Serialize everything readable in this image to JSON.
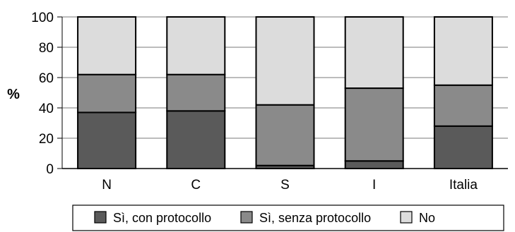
{
  "chart_data": {
    "type": "bar",
    "stacked": true,
    "percent_stacked": true,
    "categories": [
      "N",
      "C",
      "S",
      "I",
      "Italia"
    ],
    "series": [
      {
        "name": "Sì, con protocollo",
        "values": [
          37,
          38,
          2,
          5,
          28
        ],
        "color": "#5a5a5a"
      },
      {
        "name": "Sì, senza protocollo",
        "values": [
          25,
          24,
          40,
          48,
          27
        ],
        "color": "#8a8a8a"
      },
      {
        "name": "No",
        "values": [
          38,
          38,
          58,
          47,
          45
        ],
        "color": "#dcdcdc"
      }
    ],
    "ylabel": "%",
    "ylim": [
      0,
      100
    ],
    "yticks": [
      0,
      20,
      40,
      60,
      80,
      100
    ],
    "grid": true,
    "legend": "bottom"
  }
}
